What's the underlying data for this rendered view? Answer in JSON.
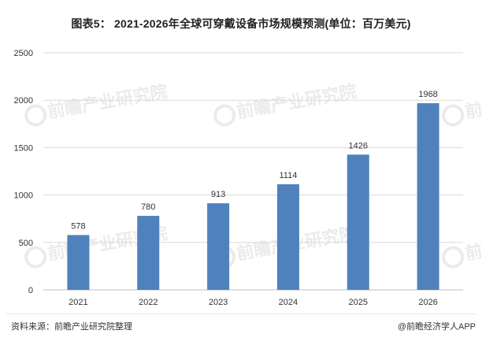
{
  "title": "图表5： 2021-2026年全球可穿戴设备市场规模预测(单位：百万美元)",
  "source": "资料来源：前瞻产业研究院整理",
  "credit": "@前瞻经济学人APP",
  "watermark": "前瞻产业研究院",
  "colors": {
    "bar": "#4F81BD",
    "grid": "#d9d9d9",
    "axis": "#bfbfbf",
    "watermark": "#e9e9e9"
  },
  "chart_data": {
    "type": "bar",
    "categories": [
      "2021",
      "2022",
      "2023",
      "2024",
      "2025",
      "2026"
    ],
    "values": [
      578,
      780,
      913,
      1114,
      1426,
      1968
    ],
    "ylim": [
      0,
      2500
    ],
    "yticks": [
      0,
      500,
      1000,
      1500,
      2000,
      2500
    ],
    "grid": true,
    "data_labels": true
  }
}
